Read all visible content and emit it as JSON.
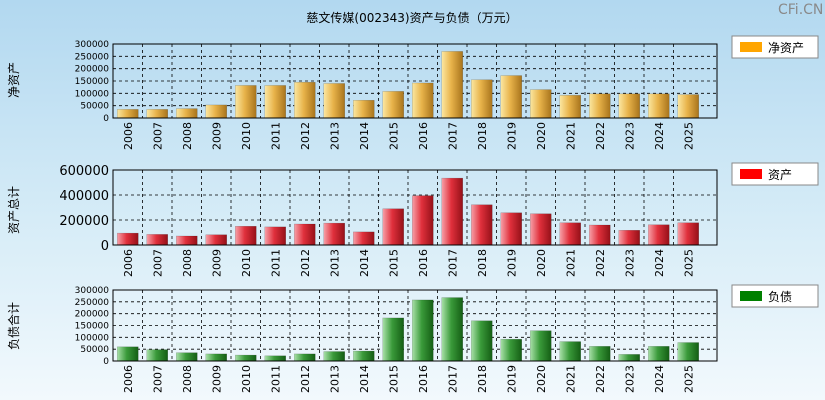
{
  "title": "慈文传媒(002343)资产与负债（万元）",
  "watermark": "CFi.CN",
  "chart_data": [
    {
      "type": "bar",
      "name": "net-assets",
      "ylabel": "净资产",
      "legend": "净资产",
      "legend_color": "#ffa500",
      "bar_color": "gold",
      "categories": [
        "2006",
        "2007",
        "2008",
        "2009",
        "2010",
        "2011",
        "2012",
        "2013",
        "2014",
        "2015",
        "2016",
        "2017",
        "2018",
        "2019",
        "2020",
        "2021",
        "2022",
        "2023",
        "2024",
        "2025"
      ],
      "values": [
        35000,
        35000,
        38000,
        53000,
        132000,
        132000,
        145000,
        140000,
        72000,
        108000,
        142000,
        270000,
        155000,
        172000,
        115000,
        92000,
        98000,
        98000,
        98000,
        95000
      ],
      "ylim": [
        0,
        300000
      ],
      "yticks": [
        "300000",
        "250000",
        "200000",
        "150000",
        "100000",
        "50000",
        "0"
      ]
    },
    {
      "type": "bar",
      "name": "total-assets",
      "ylabel": "资产总计",
      "legend": "资产",
      "legend_color": "#ff0000",
      "bar_color": "red",
      "categories": [
        "2006",
        "2007",
        "2008",
        "2009",
        "2010",
        "2011",
        "2012",
        "2013",
        "2014",
        "2015",
        "2016",
        "2017",
        "2018",
        "2019",
        "2020",
        "2021",
        "2022",
        "2023",
        "2024",
        "2025"
      ],
      "values": [
        95000,
        85000,
        72000,
        82000,
        150000,
        145000,
        168000,
        175000,
        105000,
        290000,
        395000,
        535000,
        322000,
        258000,
        250000,
        178000,
        160000,
        118000,
        162000,
        178000
      ],
      "ylim": [
        0,
        600000
      ],
      "yticks": [
        "600000",
        "400000",
        "200000",
        "0"
      ]
    },
    {
      "type": "bar",
      "name": "total-liabilities",
      "ylabel": "负债合计",
      "legend": "负债",
      "legend_color": "#008000",
      "bar_color": "green",
      "categories": [
        "2006",
        "2007",
        "2008",
        "2009",
        "2010",
        "2011",
        "2012",
        "2013",
        "2014",
        "2015",
        "2016",
        "2017",
        "2018",
        "2019",
        "2020",
        "2021",
        "2022",
        "2023",
        "2024",
        "2025"
      ],
      "values": [
        60000,
        48000,
        35000,
        30000,
        25000,
        22000,
        30000,
        40000,
        42000,
        182000,
        258000,
        268000,
        170000,
        92000,
        128000,
        82000,
        62000,
        28000,
        62000,
        78000
      ],
      "ylim": [
        0,
        300000
      ],
      "yticks": [
        "300000",
        "250000",
        "200000",
        "150000",
        "100000",
        "50000",
        "0"
      ]
    }
  ]
}
